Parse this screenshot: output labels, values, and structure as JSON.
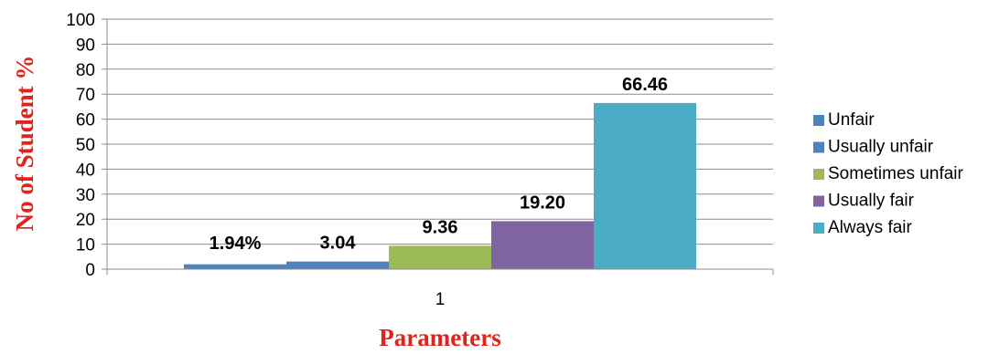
{
  "chart_data": {
    "type": "bar",
    "categories": [
      "1"
    ],
    "series": [
      {
        "name": "Unfair",
        "values": [
          1.94
        ],
        "label": "1.94%",
        "color": "#4f81bd"
      },
      {
        "name": "Usually unfair",
        "values": [
          3.04
        ],
        "label": "3.04",
        "color": "#4f81bd"
      },
      {
        "name": "Sometimes unfair",
        "values": [
          9.36
        ],
        "label": "9.36",
        "color": "#9bbb59"
      },
      {
        "name": "Usually fair",
        "values": [
          19.2
        ],
        "label": "19.20",
        "color": "#8064a2"
      },
      {
        "name": "Always fair",
        "values": [
          66.46
        ],
        "label": "66.46",
        "color": "#4bacc6"
      }
    ],
    "xlabel": "Parameters",
    "ylabel": "No of Student %",
    "ylim": [
      0,
      100
    ],
    "yticks": [
      0,
      10,
      20,
      30,
      40,
      50,
      60,
      70,
      80,
      90,
      100
    ],
    "grid": true,
    "legend_position": "right"
  }
}
